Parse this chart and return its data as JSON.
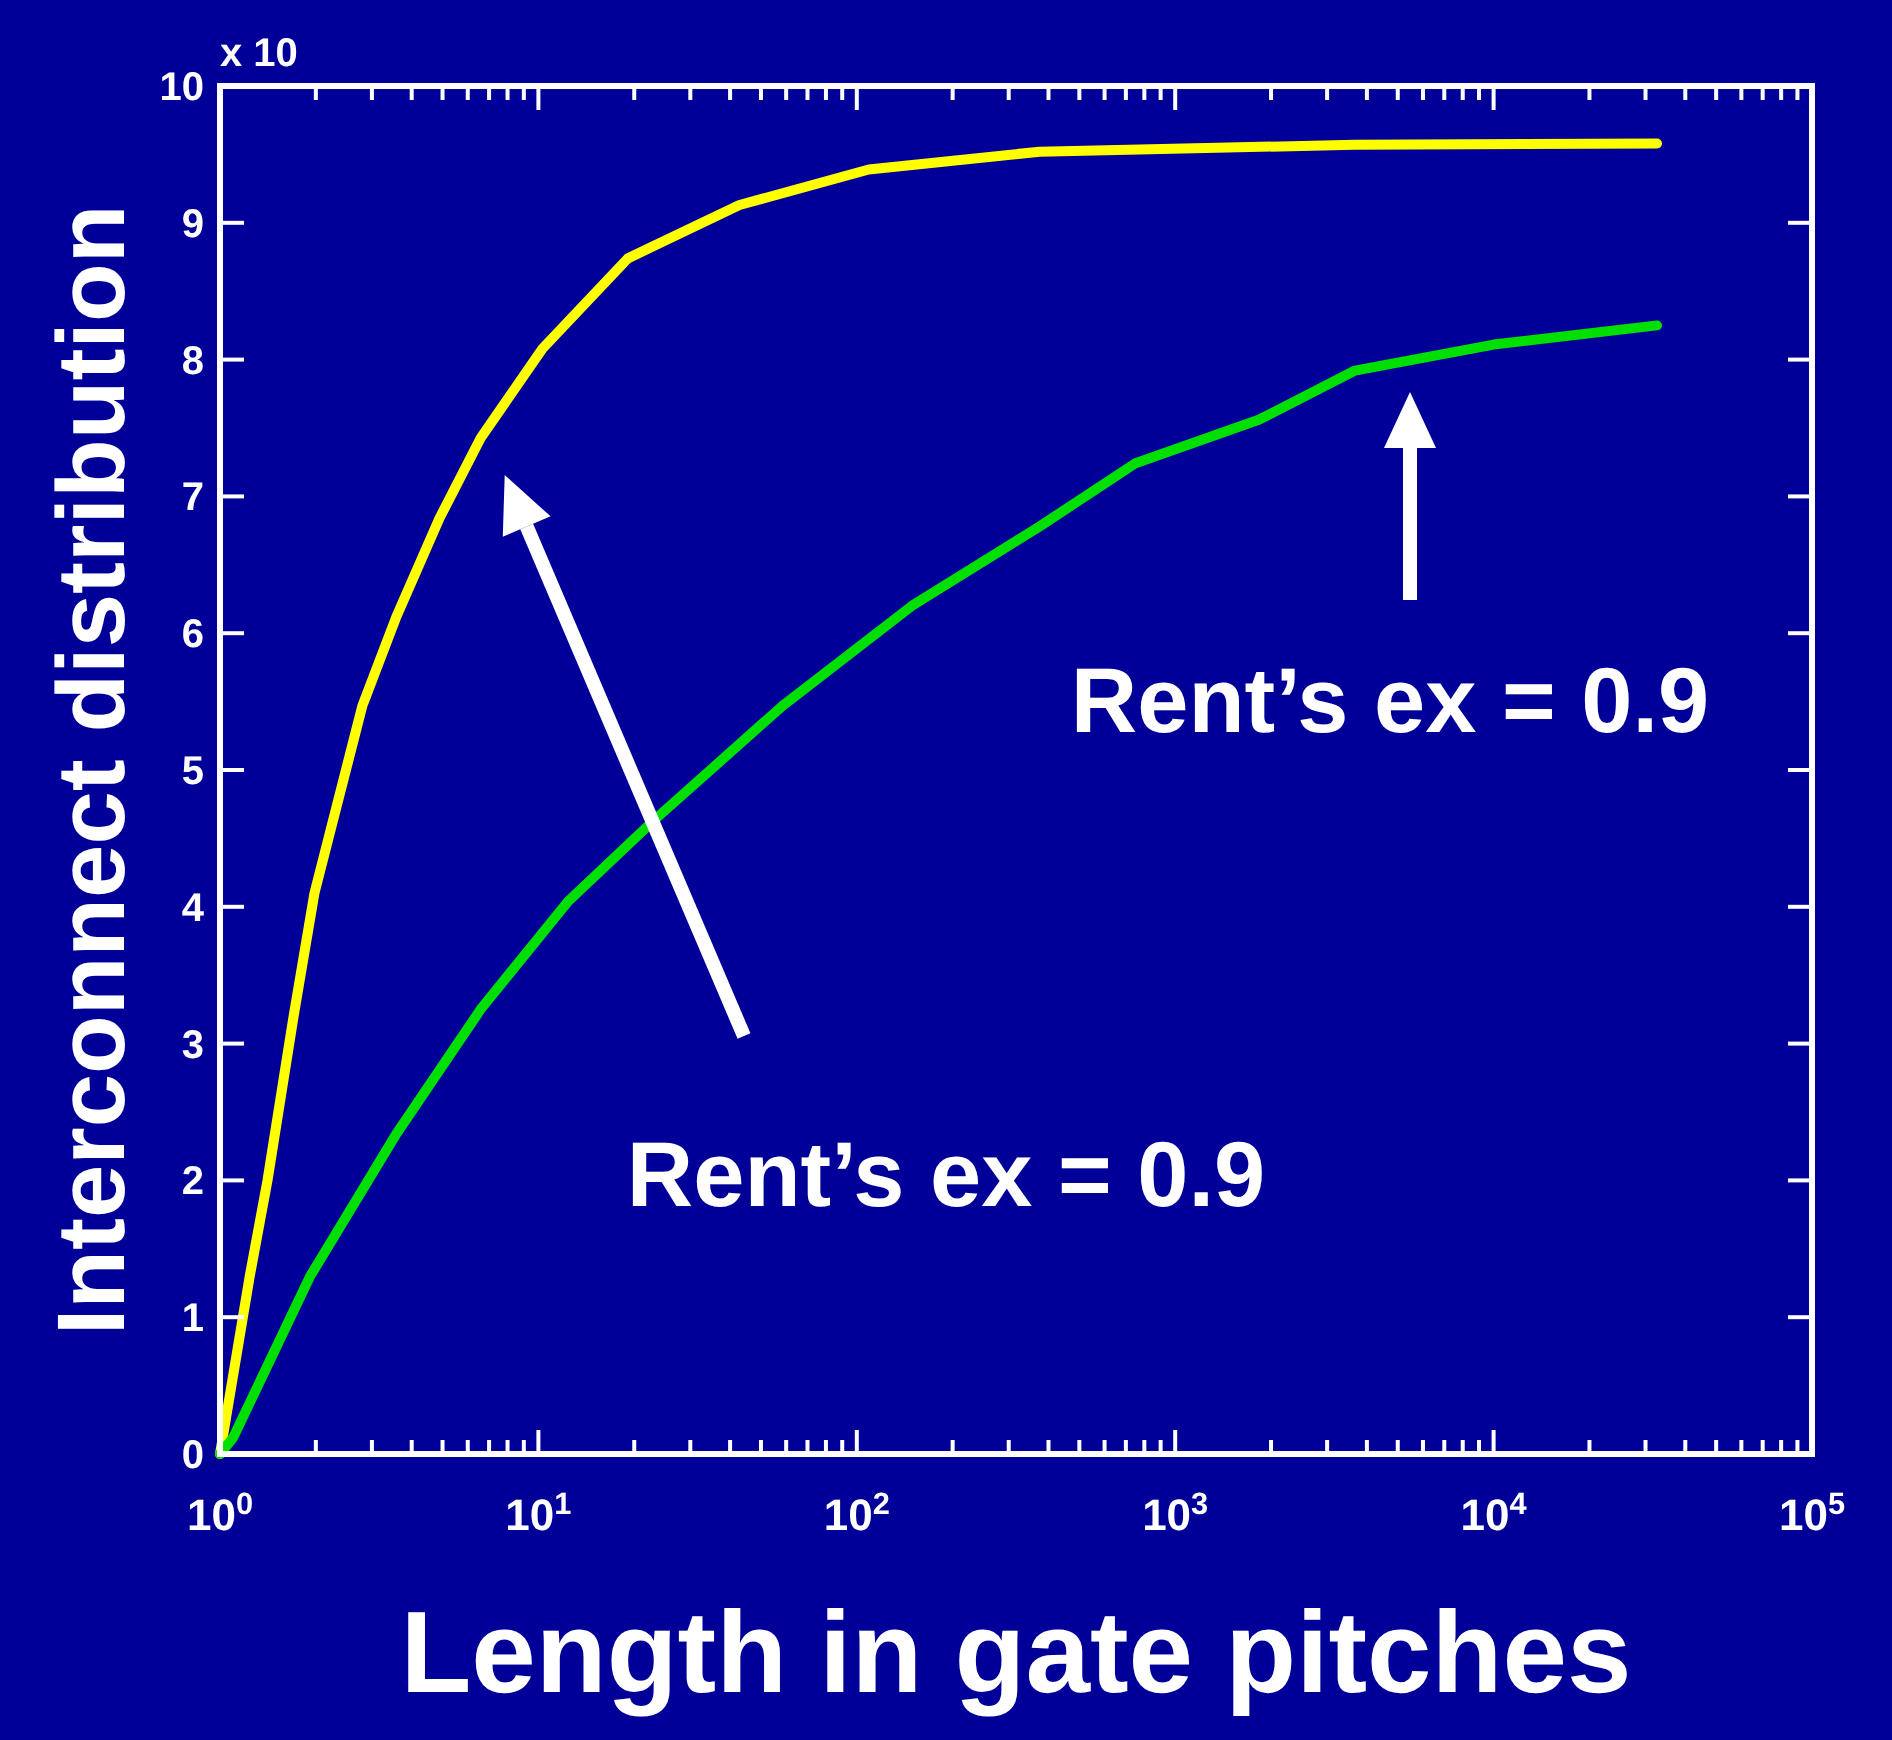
{
  "chart_data": {
    "type": "line",
    "xlabel": "Length in gate pitches",
    "ylabel": "Interconnect distribution",
    "log": "x",
    "grid": false,
    "line_style": "solid",
    "xlim": [
      1,
      100000
    ],
    "ylim": [
      0,
      10
    ],
    "xticks": [
      {
        "value": 1,
        "label": "10$^{0}$"
      },
      {
        "value": 2,
        "label": null
      },
      {
        "value": 3,
        "label": null
      },
      {
        "value": 4,
        "label": null
      },
      {
        "value": 5,
        "label": null
      },
      {
        "value": 6,
        "label": null
      },
      {
        "value": 7,
        "label": null
      },
      {
        "value": 8,
        "label": null
      },
      {
        "value": 9,
        "label": null
      },
      {
        "value": 10,
        "label": "10$^{1}$"
      },
      {
        "value": 20,
        "label": null
      },
      {
        "value": 30,
        "label": null
      },
      {
        "value": 40,
        "label": null
      },
      {
        "value": 50,
        "label": null
      },
      {
        "value": 60,
        "label": null
      },
      {
        "value": 70,
        "label": null
      },
      {
        "value": 80,
        "label": null
      },
      {
        "value": 90,
        "label": null
      },
      {
        "value": 100,
        "label": "10$^{2}$"
      },
      {
        "value": 200,
        "label": null
      },
      {
        "value": 300,
        "label": null
      },
      {
        "value": 400,
        "label": null
      },
      {
        "value": 500,
        "label": null
      },
      {
        "value": 600,
        "label": null
      },
      {
        "value": 700,
        "label": null
      },
      {
        "value": 800,
        "label": null
      },
      {
        "value": 900,
        "label": null
      },
      {
        "value": 1000,
        "label": "10$^{3}$"
      },
      {
        "value": 2000,
        "label": null
      },
      {
        "value": 3000,
        "label": null
      },
      {
        "value": 4000,
        "label": null
      },
      {
        "value": 5000,
        "label": null
      },
      {
        "value": 6000,
        "label": null
      },
      {
        "value": 7000,
        "label": null
      },
      {
        "value": 8000,
        "label": null
      },
      {
        "value": 9000,
        "label": null
      },
      {
        "value": 10000,
        "label": "10$^{4}$"
      },
      {
        "value": 20000,
        "label": null
      },
      {
        "value": 30000,
        "label": null
      },
      {
        "value": 40000,
        "label": null
      },
      {
        "value": 50000,
        "label": null
      },
      {
        "value": 60000,
        "label": null
      },
      {
        "value": 70000,
        "label": null
      },
      {
        "value": 80000,
        "label": null
      },
      {
        "value": 90000,
        "label": null
      },
      {
        "value": 100000,
        "label": "10$^{5}$"
      }
    ],
    "yticks": [
      0,
      1,
      2,
      3,
      4,
      5,
      6,
      7,
      8,
      9,
      10
    ],
    "annotations": [
      "x 10",
      "Rent’s ex = 0.9",
      "Rent’s ex = 0.9"
    ],
    "series": [
      {
        "color": "#ffff00",
        "x": [
          1,
          1.24,
          1.41,
          1.7,
          1.98,
          2.8,
          3.58,
          4.89,
          6.6,
          10.3,
          19.1,
          42.8,
          109,
          375,
          3650,
          32600
        ],
        "values": [
          0,
          1.3,
          2.0,
          3.19,
          4.1,
          5.47,
          6.12,
          6.84,
          7.43,
          8.08,
          8.74,
          9.13,
          9.39,
          9.52,
          9.57,
          9.58
        ]
      },
      {
        "color": "#00e000",
        "x": [
          1,
          1.1,
          1.92,
          3.58,
          6.63,
          12.4,
          23,
          58.5,
          149,
          375,
          747,
          1830,
          3670,
          10000,
          32600
        ],
        "values": [
          0,
          0.12,
          1.3,
          2.34,
          3.26,
          4.04,
          4.63,
          5.47,
          6.2,
          6.78,
          7.24,
          7.56,
          7.92,
          8.11,
          8.25
        ]
      }
    ]
  }
}
